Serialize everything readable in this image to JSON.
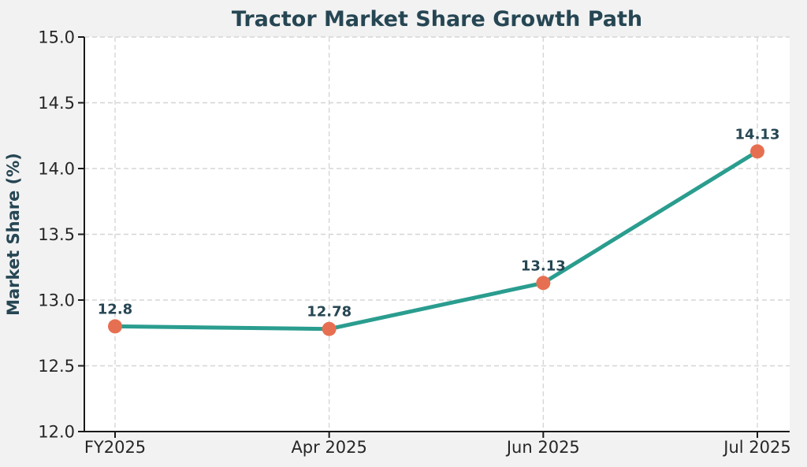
{
  "figure": {
    "background": "#f2f2f2",
    "plot_background": "#ffffff"
  },
  "chart_data": {
    "type": "line",
    "title": "Tractor Market Share Growth Path",
    "xlabel": "",
    "ylabel": "Market Share (%)",
    "categories": [
      "FY2025",
      "Apr 2025",
      "Jun 2025",
      "Jul 2025"
    ],
    "series": [
      {
        "name": "Market Share",
        "values": [
          12.8,
          12.78,
          13.13,
          14.13
        ]
      }
    ],
    "point_labels": [
      "12.8",
      "12.78",
      "13.13",
      "14.13"
    ],
    "ylim": [
      12.0,
      15.0
    ],
    "yticks": [
      12.0,
      12.5,
      13.0,
      13.5,
      14.0,
      14.5,
      15.0
    ],
    "ytick_labels": [
      "12.0",
      "12.5",
      "13.0",
      "13.5",
      "14.0",
      "14.5",
      "15.0"
    ],
    "grid": "dashed",
    "legend": "none",
    "colors": {
      "title": "#264653",
      "axis_label": "#264653",
      "annotation": "#264653",
      "line": "#2a9d8f",
      "marker": "#e76f51",
      "tick_label": "#262626",
      "grid": "#d5d5d5",
      "spine": "#1a1a1a"
    }
  }
}
